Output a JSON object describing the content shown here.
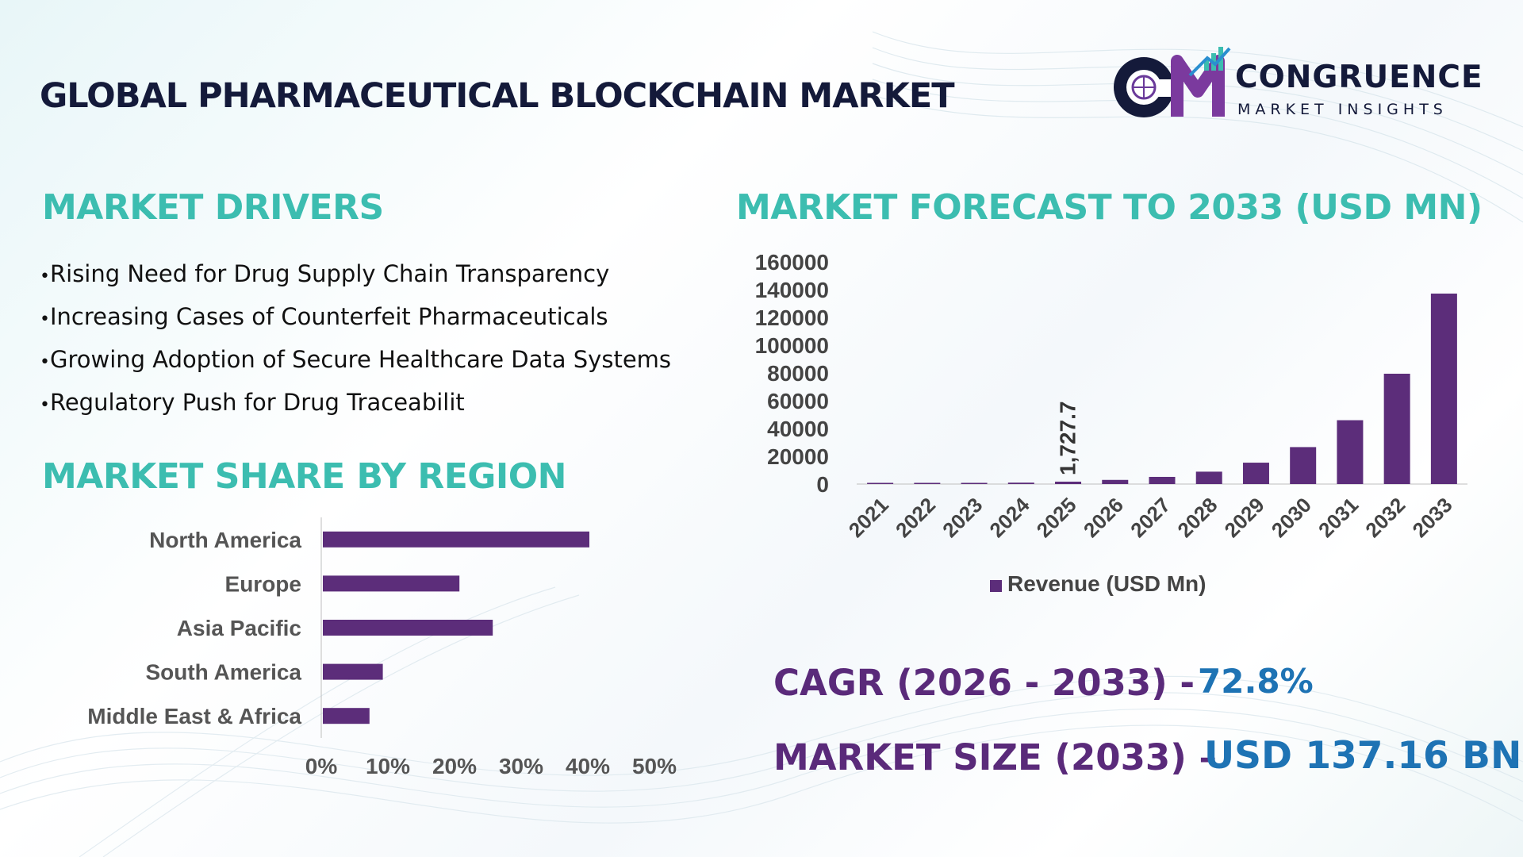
{
  "title": "GLOBAL PHARMACEUTICAL BLOCKCHAIN MARKET",
  "logo": {
    "name": "CONGRUENCE",
    "tagline": "MARKET INSIGHTS",
    "monogram": "CM"
  },
  "drivers": {
    "heading": "MARKET DRIVERS",
    "items": [
      "Rising Need for Drug Supply Chain Transparency",
      "Increasing Cases of Counterfeit Pharmaceuticals",
      "Growing Adoption of Secure Healthcare Data Systems",
      "Regulatory Push for Drug Traceabilit"
    ]
  },
  "region": {
    "heading": "MARKET SHARE BY REGION"
  },
  "forecast": {
    "heading": "MARKET FORECAST TO 2033 (USD MN)"
  },
  "stats": {
    "cagr_label": "CAGR (2026 - 2033) -",
    "cagr_value": "72.8%",
    "size_label": "MARKET SIZE (2033) –",
    "size_value": "USD 137.16 BN"
  },
  "colors": {
    "bar": "#5c2d7a",
    "heading": "#3cbdb0",
    "stat_label": "#5a2a7a",
    "stat_value": "#1e73b4",
    "title": "#141a3a"
  },
  "chart_data": [
    {
      "type": "bar",
      "orientation": "vertical",
      "categories": [
        "2021",
        "2022",
        "2023",
        "2024",
        "2025",
        "2026",
        "2027",
        "2028",
        "2029",
        "2030",
        "2031",
        "2032",
        "2033"
      ],
      "series": [
        {
          "name": "Revenue (USD Mn)",
          "values": [
            420,
            560,
            750,
            1000,
            1727.7,
            2985,
            5158,
            8913,
            15400,
            26610,
            45980,
            79450,
            137160
          ]
        }
      ],
      "data_labels": [
        {
          "category": "2025",
          "text": "1,727.7"
        }
      ],
      "yticks": [
        "0",
        "20000",
        "40000",
        "60000",
        "80000",
        "100000",
        "120000",
        "140000",
        "160000"
      ],
      "ylim": [
        0,
        160000
      ],
      "legend": "bottom",
      "grid": false
    },
    {
      "type": "bar",
      "orientation": "horizontal",
      "categories": [
        "North America",
        "Europe",
        "Asia Pacific",
        "South America",
        "Middle East & Africa"
      ],
      "values": [
        40,
        20.5,
        25.5,
        9,
        7
      ],
      "xticks": [
        "0%",
        "10%",
        "20%",
        "30%",
        "40%",
        "50%"
      ],
      "xlim": [
        0,
        50
      ],
      "grid": false
    }
  ]
}
